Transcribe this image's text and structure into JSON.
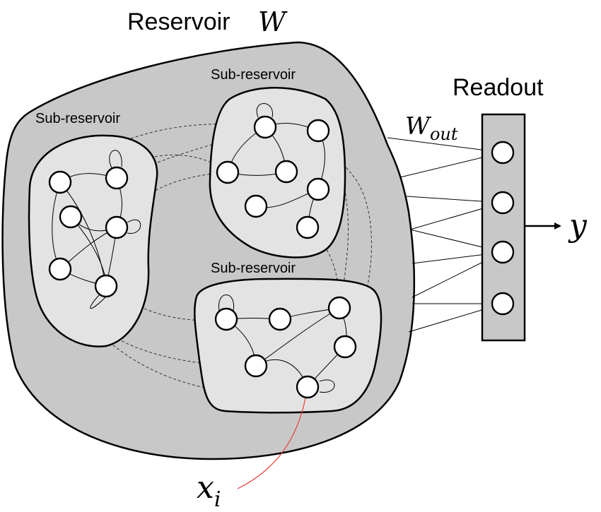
{
  "reservoir": {
    "label": "Reservoir",
    "symbol": "W"
  },
  "sub_reservoirs": [
    {
      "label": "Sub-reservoir"
    },
    {
      "label": "Sub-reservoir"
    },
    {
      "label": "Sub-reservoir"
    }
  ],
  "readout": {
    "label": "Readout",
    "weights_symbol": "W",
    "weights_subscript": "out"
  },
  "output": {
    "symbol": "y"
  },
  "input": {
    "symbol": "x",
    "subscript": "i",
    "line_color": "#e8413a"
  },
  "colors": {
    "reservoir_fill": "#c8c8c8",
    "sub_reservoir_fill": "#e3e3e3",
    "readout_fill": "#c8c8c8"
  }
}
